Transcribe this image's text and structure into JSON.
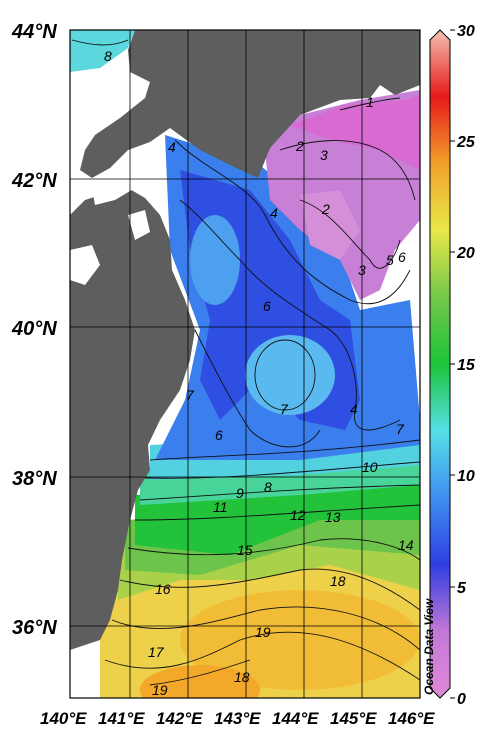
{
  "map": {
    "lat_labels": [
      "44°N",
      "42°N",
      "40°N",
      "38°N",
      "36°N"
    ],
    "lon_labels": [
      "140°E",
      "141°E",
      "142°E",
      "143°E",
      "144°E",
      "145°E",
      "146°E"
    ],
    "colorbar": {
      "ticks": [
        "30",
        "25",
        "20",
        "15",
        "10",
        "5",
        "0"
      ],
      "vmin": 0,
      "vmax": 30,
      "stops": [
        "#e08ad6",
        "#c277d8",
        "#2f3ee0",
        "#3e8ff0",
        "#58e0e8",
        "#1dc43a",
        "#74c84a",
        "#e9e84a",
        "#f2a12a",
        "#e61a1a",
        "#f6c0b0"
      ]
    },
    "watermark": "Ocean Data View",
    "contour_labels": [
      "8",
      "1",
      "2",
      "3",
      "2",
      "3",
      "5",
      "6",
      "4",
      "4",
      "6",
      "7",
      "7",
      "6",
      "4",
      "7",
      "10",
      "9",
      "8",
      "11",
      "12",
      "13",
      "15",
      "14",
      "16",
      "18",
      "17",
      "19",
      "19",
      "18"
    ],
    "colors": {
      "land": "#5e5e5e",
      "no_data": "#ffffff",
      "grid": "#000000"
    }
  }
}
